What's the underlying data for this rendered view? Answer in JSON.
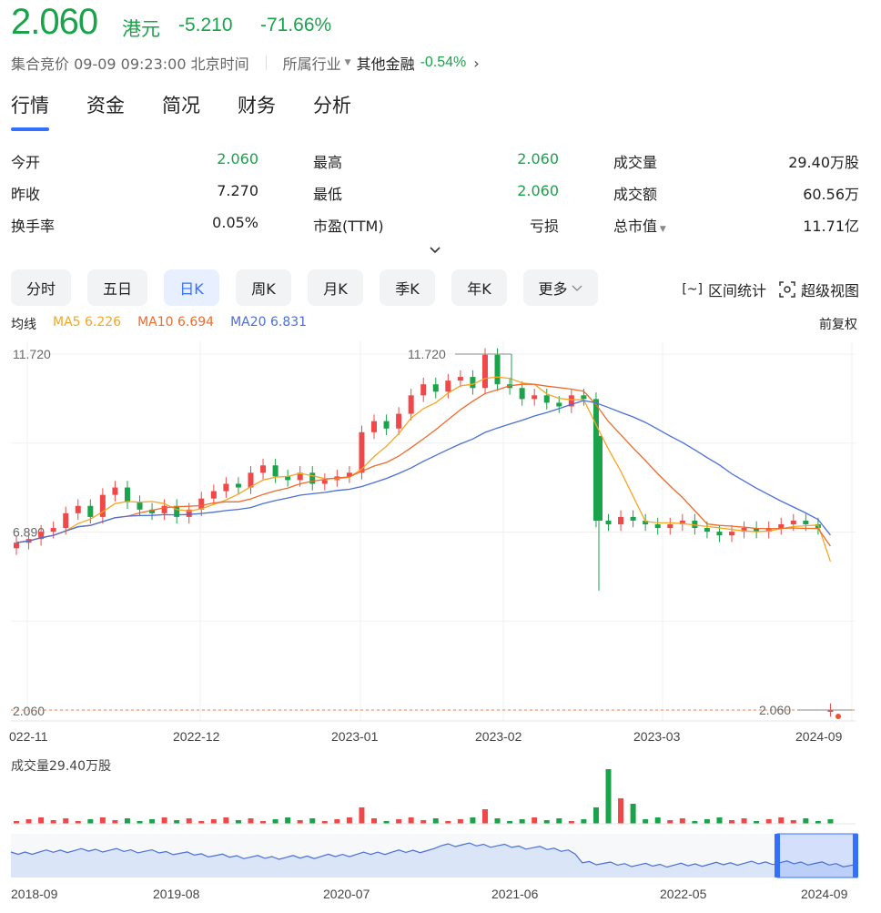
{
  "header": {
    "price": "2.060",
    "currency": "港元",
    "change": "-5.210",
    "change_pct": "-71.66%",
    "status": "集合竞价 09-09 09:23:00 北京时间",
    "industry_label": "所属行业",
    "industry_name": "其他金融",
    "industry_change": "-0.54%"
  },
  "tabs": [
    "行情",
    "资金",
    "简况",
    "财务",
    "分析"
  ],
  "stats": [
    {
      "label": "今开",
      "value": "2.060",
      "tone": "green"
    },
    {
      "label": "最高",
      "value": "2.060",
      "tone": "green"
    },
    {
      "label": "成交量",
      "value": "29.40万股",
      "tone": "dark"
    },
    {
      "label": "昨收",
      "value": "7.270",
      "tone": "dark"
    },
    {
      "label": "最低",
      "value": "2.060",
      "tone": "green"
    },
    {
      "label": "成交额",
      "value": "60.56万",
      "tone": "dark"
    },
    {
      "label": "换手率",
      "value": "0.05%",
      "tone": "dark"
    },
    {
      "label": "市盈(TTM)",
      "value": "亏损",
      "tone": "dark"
    },
    {
      "label": "总市值",
      "value": "11.71亿",
      "tone": "dark"
    }
  ],
  "periods": [
    "分时",
    "五日",
    "日K",
    "周K",
    "月K",
    "季K",
    "年K",
    "更多"
  ],
  "active_period": "日K",
  "tools": {
    "range_stats": "区间统计",
    "super_view": "超级视图"
  },
  "ma_legend": {
    "label": "均线",
    "ma5": "MA5 6.226",
    "ma10": "MA10 6.694",
    "ma20": "MA20 6.831",
    "adjust": "前复权"
  },
  "colors": {
    "up": "#f04848",
    "down": "#1aa34a",
    "ma5": "#f5a623",
    "ma10": "#f06a2a",
    "ma20": "#4a6fd8",
    "accent": "#3370ff"
  },
  "chart_data": {
    "type": "candlestick",
    "y_ticks": [
      "11.720",
      "6.890",
      "2.060"
    ],
    "ylim": [
      2.06,
      11.72
    ],
    "x_ticks": [
      "022-11",
      "2022-12",
      "2023-01",
      "2023-02",
      "2023-03",
      "2024-09"
    ],
    "high_marker": "11.720",
    "low_marker": "2.060",
    "close": [
      6.6,
      6.7,
      6.9,
      7.0,
      7.4,
      7.6,
      7.3,
      7.9,
      8.1,
      7.7,
      7.5,
      7.4,
      7.6,
      7.3,
      7.5,
      7.8,
      8.0,
      8.2,
      8.1,
      8.5,
      8.7,
      8.4,
      8.3,
      8.5,
      8.2,
      8.3,
      8.4,
      8.5,
      9.6,
      9.9,
      9.7,
      10.1,
      10.6,
      10.9,
      10.7,
      11.0,
      11.1,
      10.8,
      11.7,
      10.9,
      10.8,
      10.5,
      10.6,
      10.4,
      10.3,
      10.6,
      10.5,
      7.2,
      7.1,
      7.3,
      7.2,
      7.1,
      7.0,
      7.1,
      7.2,
      7.0,
      6.9,
      6.8,
      6.9,
      7.0,
      6.9,
      7.0,
      7.1,
      7.2,
      7.1,
      7.0,
      2.06
    ],
    "volume_label": "成交量29.40万股"
  },
  "nav_ticks": [
    "2018-09",
    "2019-08",
    "2020-07",
    "2021-06",
    "2022-05",
    "2024-09"
  ]
}
